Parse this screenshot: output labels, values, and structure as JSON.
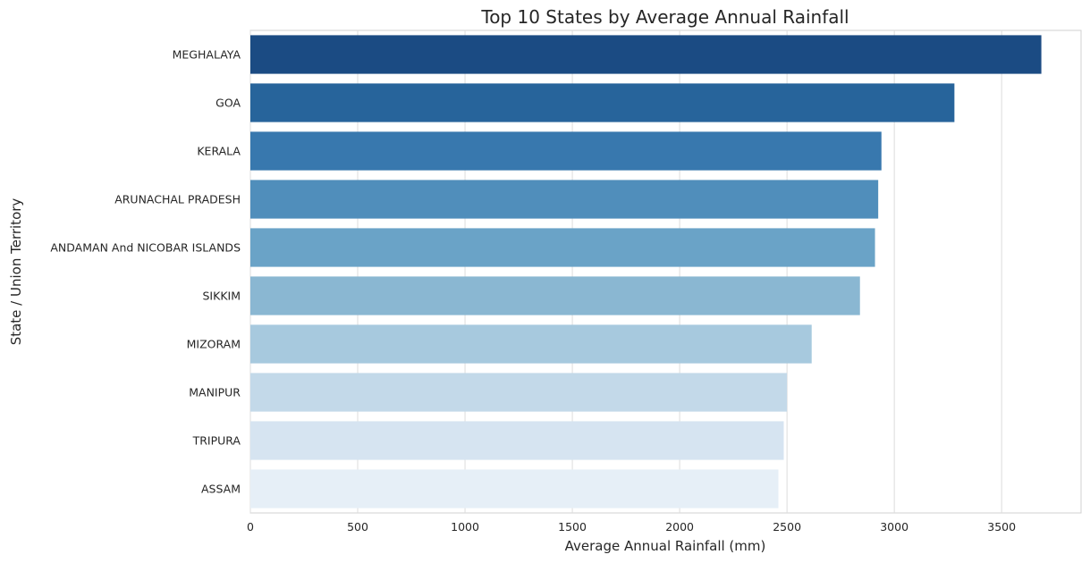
{
  "chart_data": {
    "type": "bar",
    "orientation": "horizontal",
    "title": "Top 10 States by Average Annual Rainfall",
    "xlabel": "Average Annual Rainfall (mm)",
    "ylabel": "State / Union Territory",
    "xlim": [
      0,
      3870
    ],
    "xticks": [
      0,
      500,
      1000,
      1500,
      2000,
      2500,
      3000,
      3500
    ],
    "grid": true,
    "categories": [
      "MEGHALAYA",
      "GOA",
      "KERALA",
      "ARUNACHAL PRADESH",
      "ANDAMAN And NICOBAR ISLANDS",
      "SIKKIM",
      "MIZORAM",
      "MANIPUR",
      "TRIPURA",
      "ASSAM"
    ],
    "values": [
      3685,
      3280,
      2940,
      2925,
      2910,
      2840,
      2615,
      2500,
      2485,
      2460
    ],
    "colors": [
      "#1b4b83",
      "#27649b",
      "#3878ae",
      "#508ebb",
      "#6aa3c7",
      "#8ab7d2",
      "#a7c9de",
      "#c3d9e9",
      "#d6e4f1",
      "#e6eff7"
    ]
  }
}
